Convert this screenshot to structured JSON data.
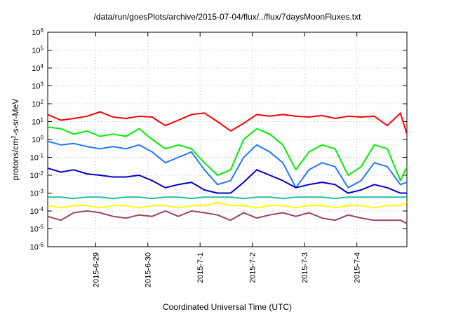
{
  "chart_data": {
    "type": "line",
    "title": "/data/run/goesPlots/archive/2015-07-04/flux/../flux/7daysMoonFluxes.txt",
    "xlabel": "Coordinated Universal Time (UTC)",
    "ylabel": "protons/cm2-s-sr-MeV",
    "y_scale": "log",
    "ylim": [
      1e-06,
      1000000.0
    ],
    "y_ticks": [
      {
        "exp": -6,
        "label": "10-6"
      },
      {
        "exp": -5,
        "label": "10-5"
      },
      {
        "exp": -4,
        "label": "10-4"
      },
      {
        "exp": -3,
        "label": "10-3"
      },
      {
        "exp": -2,
        "label": "10-2"
      },
      {
        "exp": -1,
        "label": "10-1"
      },
      {
        "exp": 0,
        "label": "100"
      },
      {
        "exp": 1,
        "label": "101"
      },
      {
        "exp": 2,
        "label": "102"
      },
      {
        "exp": 3,
        "label": "103"
      },
      {
        "exp": 4,
        "label": "104"
      },
      {
        "exp": 5,
        "label": "105"
      },
      {
        "exp": 6,
        "label": "106"
      }
    ],
    "x_scale": "days",
    "xlim": [
      "2015-06-28T02:00",
      "2015-07-04T23:00"
    ],
    "x_ticks": [
      "2015-6-29",
      "2015-6-30",
      "2015-7-1",
      "2015-7-2",
      "2015-7-3",
      "2015-7-4"
    ],
    "grid": true,
    "x": [
      "2015-06-28T02:00",
      "2015-06-28T08:00",
      "2015-06-28T14:00",
      "2015-06-28T20:00",
      "2015-06-29T02:00",
      "2015-06-29T08:00",
      "2015-06-29T14:00",
      "2015-06-29T20:00",
      "2015-06-30T02:00",
      "2015-06-30T08:00",
      "2015-06-30T14:00",
      "2015-06-30T20:00",
      "2015-07-01T02:00",
      "2015-07-01T08:00",
      "2015-07-01T14:00",
      "2015-07-01T20:00",
      "2015-07-02T02:00",
      "2015-07-02T08:00",
      "2015-07-02T14:00",
      "2015-07-02T20:00",
      "2015-07-03T02:00",
      "2015-07-03T08:00",
      "2015-07-03T14:00",
      "2015-07-03T20:00",
      "2015-07-04T02:00",
      "2015-07-04T08:00",
      "2015-07-04T14:00",
      "2015-07-04T20:00",
      "2015-07-04T23:00"
    ],
    "series": [
      {
        "color": "#ff0000",
        "values": [
          25,
          12,
          15,
          20,
          35,
          18,
          15,
          20,
          18,
          6,
          12,
          25,
          30,
          10,
          3,
          8,
          25,
          20,
          25,
          20,
          18,
          22,
          15,
          20,
          18,
          20,
          6,
          30,
          2
        ]
      },
      {
        "color": "#00ee00",
        "values": [
          5,
          4,
          2,
          3,
          1.5,
          2,
          1.5,
          4,
          1,
          0.3,
          0.5,
          0.3,
          0.05,
          0.01,
          0.02,
          1,
          4,
          2,
          0.5,
          0.02,
          0.2,
          0.5,
          0.3,
          0.01,
          0.03,
          0.5,
          0.3,
          0.005,
          0.03
        ]
      },
      {
        "color": "#1e78ff",
        "values": [
          0.8,
          0.5,
          0.6,
          0.4,
          0.3,
          0.4,
          0.3,
          0.5,
          0.2,
          0.05,
          0.1,
          0.2,
          0.02,
          0.003,
          0.005,
          0.1,
          0.5,
          0.2,
          0.05,
          0.002,
          0.02,
          0.05,
          0.03,
          0.002,
          0.005,
          0.05,
          0.03,
          0.003,
          0.004
        ]
      },
      {
        "color": "#0000cc",
        "values": [
          0.025,
          0.015,
          0.02,
          0.012,
          0.01,
          0.008,
          0.008,
          0.01,
          0.005,
          0.002,
          0.003,
          0.004,
          0.0015,
          0.001,
          0.001,
          0.004,
          0.02,
          0.01,
          0.005,
          0.002,
          0.003,
          0.004,
          0.003,
          0.001,
          0.0015,
          0.003,
          0.002,
          0.001,
          0.001
        ]
      },
      {
        "color": "#20c0a0",
        "values": [
          0.0006,
          0.0006,
          0.0005,
          0.0006,
          0.0006,
          0.0005,
          0.0006,
          0.0006,
          0.0005,
          0.0006,
          0.0006,
          0.0005,
          0.0006,
          0.0006,
          0.0006,
          0.0005,
          0.0006,
          0.0006,
          0.0005,
          0.0006,
          0.0006,
          0.0006,
          0.0005,
          0.0006,
          0.0006,
          0.0006,
          0.0006,
          0.0006,
          0.0006
        ]
      },
      {
        "color": "#ffff00",
        "values": [
          0.0002,
          0.00015,
          0.0002,
          0.0002,
          0.00015,
          0.0002,
          0.0002,
          0.00015,
          0.0002,
          0.0002,
          0.00015,
          0.0002,
          0.0002,
          0.0003,
          0.0002,
          0.0002,
          0.00015,
          0.0002,
          0.0002,
          0.00015,
          0.0002,
          0.0002,
          0.00015,
          0.0002,
          0.0002,
          0.00015,
          0.0002,
          0.0002,
          0.0003
        ]
      },
      {
        "color": "#994466",
        "values": [
          5e-05,
          3e-05,
          8e-05,
          0.0001,
          8e-05,
          5e-05,
          4e-05,
          6e-05,
          5e-05,
          0.0001,
          5e-05,
          0.0001,
          8e-05,
          6e-05,
          3e-05,
          8e-05,
          4e-05,
          6e-05,
          8e-05,
          5e-05,
          8e-05,
          4e-05,
          3e-05,
          6e-05,
          4e-05,
          3e-05,
          3e-05,
          3e-05,
          2e-05
        ]
      }
    ]
  }
}
